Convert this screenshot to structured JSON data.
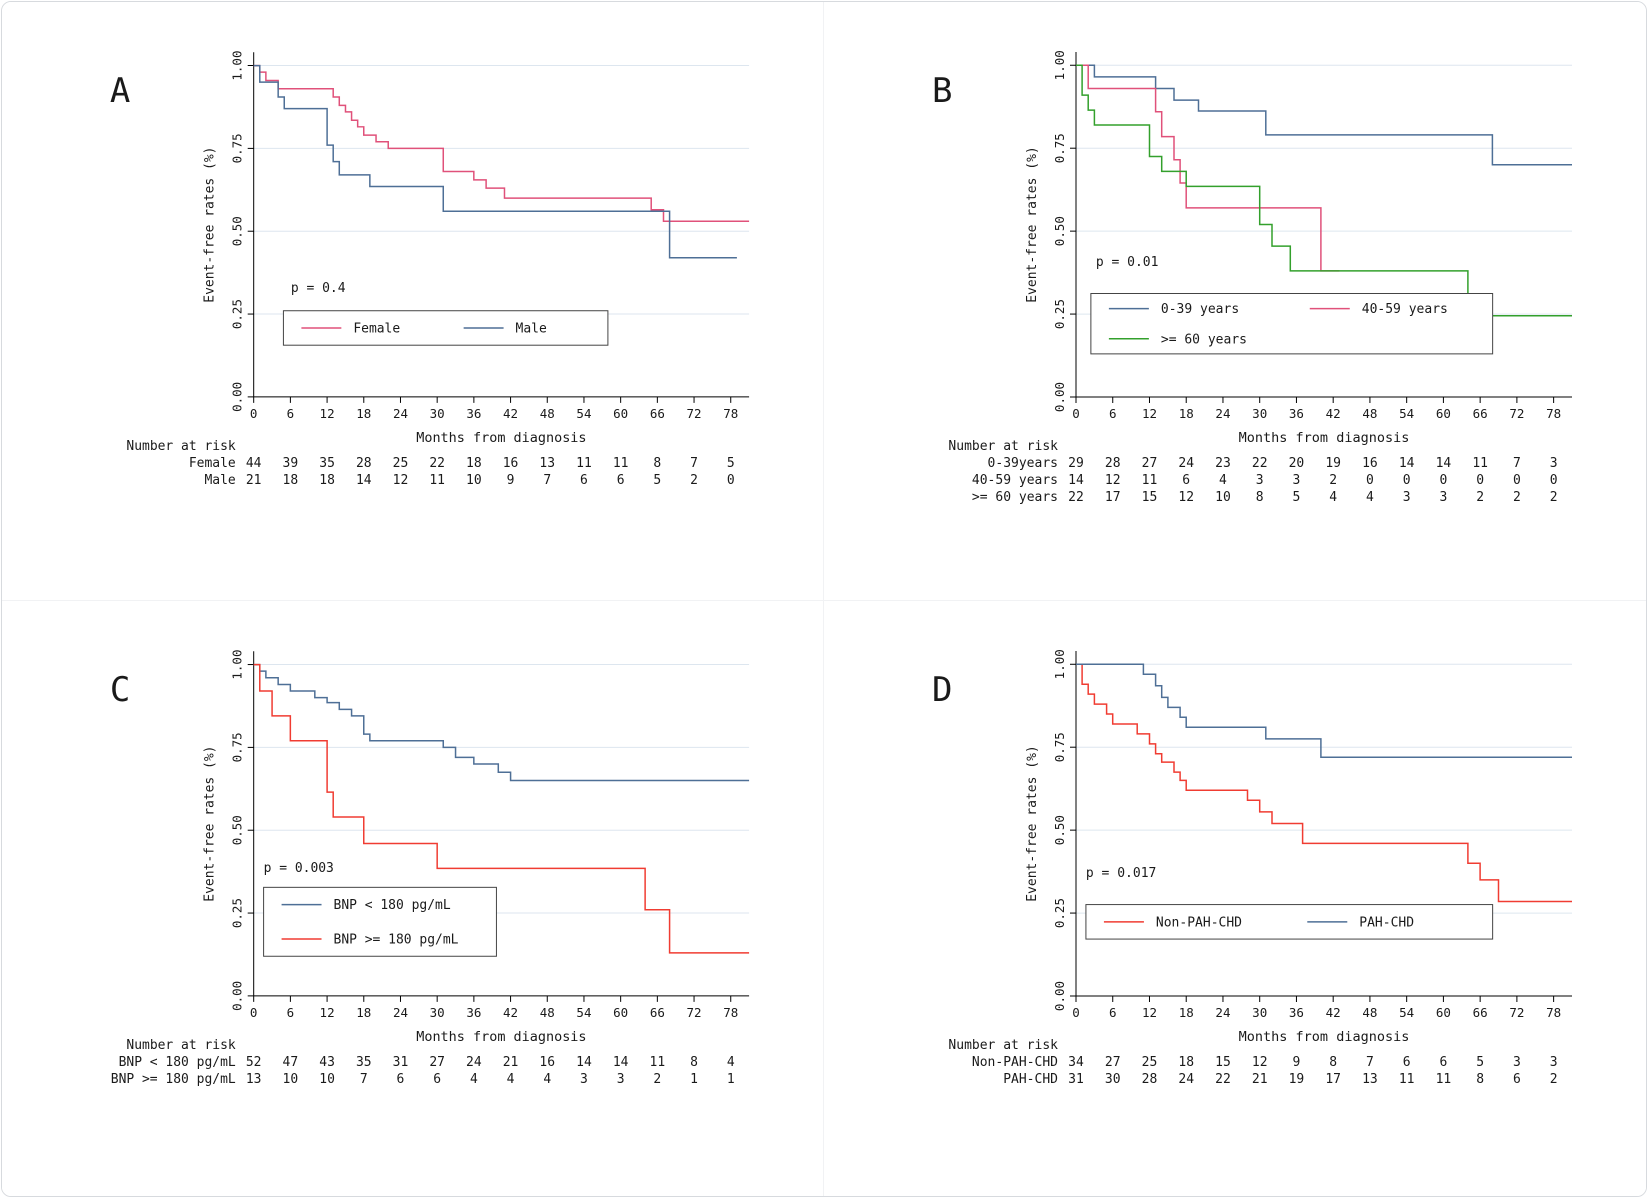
{
  "figure": {
    "background": "#ffffff",
    "border_color": "#d7dade"
  },
  "colors": {
    "navy": "#4e6f96",
    "pink": "#e0517a",
    "red": "#f03c32",
    "green": "#33a02c",
    "grid": "#dde6ef",
    "axis": "#000000"
  },
  "axis": {
    "xlabel": "Months from diagnosis",
    "ylabel": "Event-free rates (%)",
    "x_ticks": [
      0,
      6,
      12,
      18,
      24,
      30,
      36,
      42,
      48,
      54,
      60,
      66,
      72,
      78
    ],
    "y_ticks": [
      0,
      0.25,
      0.5,
      0.75,
      1.0
    ],
    "y_tick_labels": [
      "0.00",
      "0.25",
      "0.50",
      "0.75",
      "1.00"
    ],
    "xlim": [
      0,
      81
    ],
    "ylim": [
      0,
      1.04
    ],
    "grid": "horizontal"
  },
  "chart_data": [
    {
      "type": "line",
      "label": "A",
      "p_value": "p = 0.4",
      "p_pos": {
        "x": 0.075,
        "y": 0.695
      },
      "legend": {
        "x": 0.06,
        "y": 0.75,
        "w": 0.655,
        "h": 0.1,
        "rows": [
          [
            0,
            1
          ]
        ]
      },
      "series": [
        {
          "name": "Female",
          "color": "pink",
          "points": [
            [
              0,
              1.0
            ],
            [
              1,
              0.98
            ],
            [
              2,
              0.955
            ],
            [
              4,
              0.93
            ],
            [
              13,
              0.905
            ],
            [
              14,
              0.88
            ],
            [
              15,
              0.86
            ],
            [
              16,
              0.835
            ],
            [
              17,
              0.815
            ],
            [
              18,
              0.79
            ],
            [
              20,
              0.77
            ],
            [
              22,
              0.75
            ],
            [
              31,
              0.68
            ],
            [
              36,
              0.655
            ],
            [
              38,
              0.63
            ],
            [
              41,
              0.6
            ],
            [
              65,
              0.565
            ],
            [
              67,
              0.53
            ],
            [
              81,
              0.53
            ]
          ]
        },
        {
          "name": "Male",
          "color": "navy",
          "points": [
            [
              0,
              1.0
            ],
            [
              1,
              0.95
            ],
            [
              4,
              0.905
            ],
            [
              5,
              0.87
            ],
            [
              12,
              0.76
            ],
            [
              13,
              0.71
            ],
            [
              14,
              0.67
            ],
            [
              19,
              0.635
            ],
            [
              31,
              0.56
            ],
            [
              68,
              0.42
            ],
            [
              79,
              0.42
            ]
          ]
        }
      ],
      "risk_table": {
        "title": "Number at risk",
        "rows": [
          {
            "label": "Female",
            "values": [
              44,
              39,
              35,
              28,
              25,
              22,
              18,
              16,
              13,
              11,
              11,
              8,
              7,
              5
            ]
          },
          {
            "label": "Male",
            "values": [
              21,
              18,
              18,
              14,
              12,
              11,
              10,
              9,
              7,
              6,
              6,
              5,
              2,
              0
            ]
          }
        ]
      }
    },
    {
      "type": "line",
      "label": "B",
      "p_value": "p = 0.01",
      "p_pos": {
        "x": 0.04,
        "y": 0.62
      },
      "legend": {
        "x": 0.03,
        "y": 0.7,
        "w": 0.81,
        "h": 0.175,
        "rows": [
          [
            0,
            1
          ],
          [
            2
          ]
        ]
      },
      "series": [
        {
          "name": "0-39 years",
          "color": "navy",
          "points": [
            [
              0,
              1.0
            ],
            [
              3,
              0.965
            ],
            [
              13,
              0.93
            ],
            [
              16,
              0.895
            ],
            [
              20,
              0.862
            ],
            [
              31,
              0.79
            ],
            [
              68,
              0.7
            ],
            [
              81,
              0.7
            ]
          ]
        },
        {
          "name": "40-59 years",
          "color": "pink",
          "points": [
            [
              0,
              1.0
            ],
            [
              2,
              0.93
            ],
            [
              13,
              0.86
            ],
            [
              14,
              0.785
            ],
            [
              16,
              0.715
            ],
            [
              17,
              0.645
            ],
            [
              18,
              0.57
            ],
            [
              40,
              0.38
            ],
            [
              43,
              0.38
            ]
          ]
        },
        {
          "name": ">= 60 years",
          "color": "green",
          "points": [
            [
              0,
              1.0
            ],
            [
              1,
              0.91
            ],
            [
              2,
              0.865
            ],
            [
              3,
              0.82
            ],
            [
              12,
              0.725
            ],
            [
              14,
              0.68
            ],
            [
              18,
              0.635
            ],
            [
              30,
              0.52
            ],
            [
              32,
              0.455
            ],
            [
              35,
              0.38
            ],
            [
              64,
              0.245
            ],
            [
              81,
              0.245
            ]
          ]
        }
      ],
      "risk_table": {
        "title": "Number at risk",
        "rows": [
          {
            "label": "0-39years",
            "values": [
              29,
              28,
              27,
              24,
              23,
              22,
              20,
              19,
              16,
              14,
              14,
              11,
              7,
              3
            ]
          },
          {
            "label": "40-59 years",
            "values": [
              14,
              12,
              11,
              6,
              4,
              3,
              3,
              2,
              0,
              0,
              0,
              0,
              0,
              0
            ]
          },
          {
            "label": ">= 60 years",
            "values": [
              22,
              17,
              15,
              12,
              10,
              8,
              5,
              4,
              4,
              3,
              3,
              2,
              2,
              2
            ]
          }
        ]
      }
    },
    {
      "type": "line",
      "label": "C",
      "p_value": "p = 0.003",
      "p_pos": {
        "x": 0.02,
        "y": 0.64
      },
      "legend": {
        "x": 0.02,
        "y": 0.685,
        "w": 0.47,
        "h": 0.2,
        "rows": [
          [
            0
          ],
          [
            1
          ]
        ]
      },
      "series": [
        {
          "name": "BNP < 180 pg/mL",
          "color": "navy",
          "points": [
            [
              0,
              1.0
            ],
            [
              1,
              0.98
            ],
            [
              2,
              0.96
            ],
            [
              4,
              0.94
            ],
            [
              6,
              0.92
            ],
            [
              10,
              0.9
            ],
            [
              12,
              0.885
            ],
            [
              14,
              0.865
            ],
            [
              16,
              0.845
            ],
            [
              18,
              0.79
            ],
            [
              19,
              0.77
            ],
            [
              31,
              0.75
            ],
            [
              33,
              0.72
            ],
            [
              36,
              0.7
            ],
            [
              40,
              0.675
            ],
            [
              42,
              0.65
            ],
            [
              81,
              0.65
            ]
          ]
        },
        {
          "name": "BNP >= 180 pg/mL",
          "color": "red",
          "points": [
            [
              0,
              1.0
            ],
            [
              1,
              0.92
            ],
            [
              3,
              0.845
            ],
            [
              6,
              0.77
            ],
            [
              12,
              0.615
            ],
            [
              13,
              0.54
            ],
            [
              18,
              0.46
            ],
            [
              30,
              0.385
            ],
            [
              64,
              0.26
            ],
            [
              68,
              0.13
            ],
            [
              81,
              0.13
            ]
          ]
        }
      ],
      "risk_table": {
        "title": "Number at risk",
        "rows": [
          {
            "label": "BNP < 180 pg/mL",
            "values": [
              52,
              47,
              43,
              35,
              31,
              27,
              24,
              21,
              16,
              14,
              14,
              11,
              8,
              4
            ]
          },
          {
            "label": "BNP >= 180 pg/mL",
            "values": [
              13,
              10,
              10,
              7,
              6,
              6,
              4,
              4,
              4,
              3,
              3,
              2,
              1,
              1
            ]
          }
        ]
      }
    },
    {
      "type": "line",
      "label": "D",
      "p_value": "p = 0.017",
      "p_pos": {
        "x": 0.02,
        "y": 0.655
      },
      "legend": {
        "x": 0.02,
        "y": 0.735,
        "w": 0.82,
        "h": 0.1,
        "rows": [
          [
            0,
            1
          ]
        ]
      },
      "series": [
        {
          "name": "Non-PAH-CHD",
          "color": "red",
          "points": [
            [
              0,
              1.0
            ],
            [
              1,
              0.94
            ],
            [
              2,
              0.91
            ],
            [
              3,
              0.88
            ],
            [
              5,
              0.85
            ],
            [
              6,
              0.82
            ],
            [
              10,
              0.79
            ],
            [
              12,
              0.76
            ],
            [
              13,
              0.73
            ],
            [
              14,
              0.705
            ],
            [
              16,
              0.675
            ],
            [
              17,
              0.65
            ],
            [
              18,
              0.62
            ],
            [
              28,
              0.59
            ],
            [
              30,
              0.555
            ],
            [
              32,
              0.52
            ],
            [
              37,
              0.46
            ],
            [
              64,
              0.4
            ],
            [
              66,
              0.35
            ],
            [
              69,
              0.285
            ],
            [
              81,
              0.285
            ]
          ]
        },
        {
          "name": "PAH-CHD",
          "color": "navy",
          "points": [
            [
              0,
              1.0
            ],
            [
              11,
              0.97
            ],
            [
              13,
              0.935
            ],
            [
              14,
              0.9
            ],
            [
              15,
              0.87
            ],
            [
              17,
              0.84
            ],
            [
              18,
              0.81
            ],
            [
              31,
              0.775
            ],
            [
              40,
              0.72
            ],
            [
              81,
              0.72
            ]
          ]
        }
      ],
      "risk_table": {
        "title": "Number at risk",
        "rows": [
          {
            "label": "Non-PAH-CHD",
            "values": [
              34,
              27,
              25,
              18,
              15,
              12,
              9,
              8,
              7,
              6,
              6,
              5,
              3,
              3
            ]
          },
          {
            "label": "PAH-CHD",
            "values": [
              31,
              30,
              28,
              24,
              22,
              21,
              19,
              17,
              13,
              11,
              11,
              8,
              6,
              2
            ]
          }
        ]
      }
    }
  ]
}
